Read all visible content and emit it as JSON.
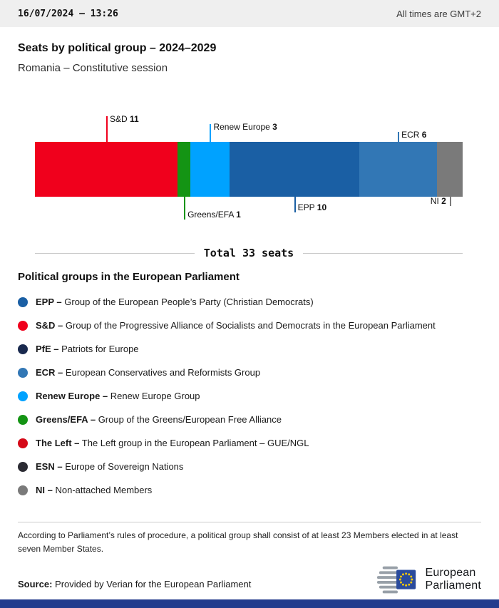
{
  "header": {
    "datetime": "16/07/2024 – 13:26",
    "timezone_note": "All times are GMT+2"
  },
  "title": "Seats by political group – 2024–2029",
  "subtitle": "Romania – Constitutive session",
  "chart_data": {
    "type": "bar",
    "title": "Seats by political group – 2024–2029",
    "subtitle": "Romania – Constitutive session",
    "orientation": "horizontal-stacked",
    "total_seats": 33,
    "total_label": "Total 33 seats",
    "segments": [
      {
        "name": "S&D",
        "seats": 11,
        "color": "#f0001c",
        "label_position": "top"
      },
      {
        "name": "Greens/EFA",
        "seats": 1,
        "color": "#149414",
        "label_position": "bottom"
      },
      {
        "name": "Renew Europe",
        "seats": 3,
        "color": "#00a2ff",
        "label_position": "top"
      },
      {
        "name": "EPP",
        "seats": 10,
        "color": "#1a5fa4",
        "label_position": "bottom"
      },
      {
        "name": "ECR",
        "seats": 6,
        "color": "#3277b5",
        "label_position": "top"
      },
      {
        "name": "NI",
        "seats": 2,
        "color": "#7a7a7a",
        "label_position": "bottom"
      }
    ]
  },
  "legend": {
    "heading": "Political groups in the European Parliament",
    "items": [
      {
        "abbr": "EPP –",
        "desc": "Group of the European People’s Party (Christian Democrats)",
        "color": "#1a5fa4"
      },
      {
        "abbr": "S&D –",
        "desc": "Group of the Progressive Alliance of Socialists and Democrats in the European Parliament",
        "color": "#f0001c"
      },
      {
        "abbr": "PfE –",
        "desc": "Patriots for Europe",
        "color": "#19294e"
      },
      {
        "abbr": "ECR –",
        "desc": "European Conservatives and Reformists Group",
        "color": "#3277b5"
      },
      {
        "abbr": "Renew Europe –",
        "desc": "Renew Europe Group",
        "color": "#00a2ff"
      },
      {
        "abbr": "Greens/EFA –",
        "desc": "Group of the Greens/European Free Alliance",
        "color": "#149414"
      },
      {
        "abbr": "The Left –",
        "desc": "The Left group in the European Parliament – GUE/NGL",
        "color": "#d50918"
      },
      {
        "abbr": "ESN –",
        "desc": "Europe of Sovereign Nations",
        "color": "#2b2b33"
      },
      {
        "abbr": "NI –",
        "desc": "Non-attached Members",
        "color": "#7a7a7a"
      }
    ]
  },
  "footnote": "According to Parliament’s rules of procedure, a political group shall consist of at least 23 Members elected in at least seven Member States.",
  "source": {
    "label": "Source:",
    "text": "Provided by Verian for the European Parliament"
  },
  "logo": {
    "line1": "European",
    "line2": "Parliament"
  },
  "colors": {
    "footer_bar": "#233c8d",
    "eu_blue": "#2a4b9c",
    "eu_gold": "#ffcc00"
  }
}
